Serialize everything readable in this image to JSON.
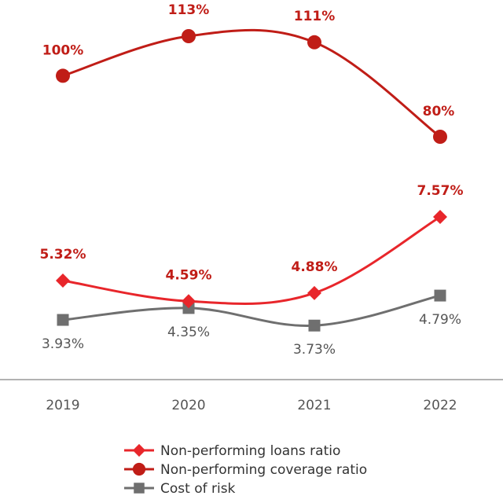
{
  "chart_data": {
    "type": "line",
    "categories": [
      "2019",
      "2020",
      "2021",
      "2022"
    ],
    "series": [
      {
        "name": "Non-performing loans ratio",
        "values": [
          5.32,
          4.59,
          4.88,
          7.57
        ],
        "labels": [
          "5.32%",
          "4.59%",
          "4.88%",
          "7.57%"
        ],
        "color": "#e8262b",
        "marker": "diamond"
      },
      {
        "name": "Non-performing coverage ratio",
        "values": [
          100,
          113,
          111,
          80
        ],
        "labels": [
          "100%",
          "113%",
          "111%",
          "80%"
        ],
        "color": "#c01d17",
        "marker": "circle"
      },
      {
        "name": "Cost of risk",
        "values": [
          3.93,
          4.35,
          3.73,
          4.79
        ],
        "labels": [
          "3.93%",
          "4.35%",
          "3.73%",
          "4.79%"
        ],
        "color": "#6f6f6f",
        "marker": "square"
      }
    ],
    "legend_position": "bottom-center",
    "grid": false
  }
}
